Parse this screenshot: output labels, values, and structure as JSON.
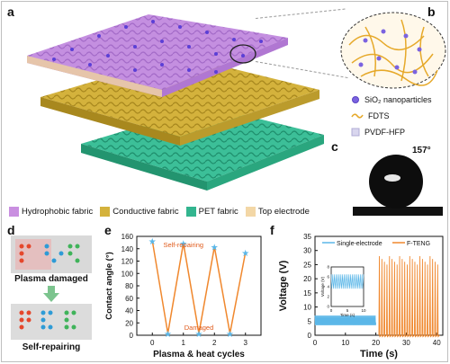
{
  "panels": {
    "a": "a",
    "b": "b",
    "c": "c",
    "d": "d",
    "e": "e",
    "f": "f"
  },
  "panel_b": {
    "legend": [
      {
        "label": "SiO₂ nanoparticles",
        "icon": "sio2-dot-icon"
      },
      {
        "label": "FDTS",
        "icon": "fdts-wave-icon"
      },
      {
        "label": "PVDF-HFP",
        "icon": "pvdf-square-icon"
      }
    ]
  },
  "panel_c": {
    "angle": "157°"
  },
  "panel_a_legend": [
    {
      "label": "Hydrophobic fabric",
      "color": "#c98fe0"
    },
    {
      "label": "Conductive fabric",
      "color": "#d4b23c"
    },
    {
      "label": "PET fabric",
      "color": "#33b58f"
    },
    {
      "label": "Top electrode",
      "color": "#f3d7a6"
    }
  ],
  "panel_d": {
    "top_caption": "Plasma damaged",
    "bottom_caption": "Self-repairing"
  },
  "chart_data": [
    {
      "type": "line",
      "panel": "e",
      "title": "",
      "xlabel": "Plasma & heat cycles",
      "ylabel": "Contact angle (°)",
      "xlim": [
        -0.5,
        3.5
      ],
      "ylim": [
        0,
        160
      ],
      "xticks": [
        0,
        1,
        2,
        3
      ],
      "yticks": [
        0,
        20,
        40,
        60,
        80,
        100,
        120,
        140,
        160
      ],
      "series": [
        {
          "color": "#f0882e",
          "marker_color": "#5bb7e8",
          "x": [
            0,
            0.5,
            1,
            1.5,
            2,
            2.5,
            3
          ],
          "y": [
            153,
            3,
            149,
            3,
            143,
            3,
            134
          ]
        }
      ],
      "annotations": [
        {
          "text": "Self-repairing",
          "color": "#e05a1a"
        },
        {
          "text": "Damaged",
          "color": "#e05a1a"
        }
      ]
    },
    {
      "type": "line",
      "panel": "f",
      "title": "",
      "xlabel": "Time (s)",
      "ylabel": "Voltage (V)",
      "xlim": [
        0,
        42
      ],
      "ylim": [
        0,
        35
      ],
      "xticks": [
        0,
        10,
        20,
        30,
        40
      ],
      "yticks": [
        0,
        5,
        10,
        15,
        20,
        25,
        30,
        35
      ],
      "legend_position": "top",
      "series": [
        {
          "name": "Single-electrode",
          "color": "#5bb7e8",
          "x_range": [
            0,
            20
          ],
          "peak": 7,
          "baseline": 3
        },
        {
          "name": "F-TENG",
          "color": "#f0882e",
          "x_range": [
            21,
            41
          ],
          "peak": 28,
          "baseline": 0
        }
      ],
      "inset": {
        "xlabel": "Time (s)",
        "ylabel": "Voltage (V)",
        "xlim": [
          0,
          10
        ],
        "ylim": [
          0,
          8
        ],
        "xticks": [
          0,
          5,
          10
        ],
        "yticks": [
          0,
          2,
          4,
          6,
          8
        ]
      }
    }
  ]
}
